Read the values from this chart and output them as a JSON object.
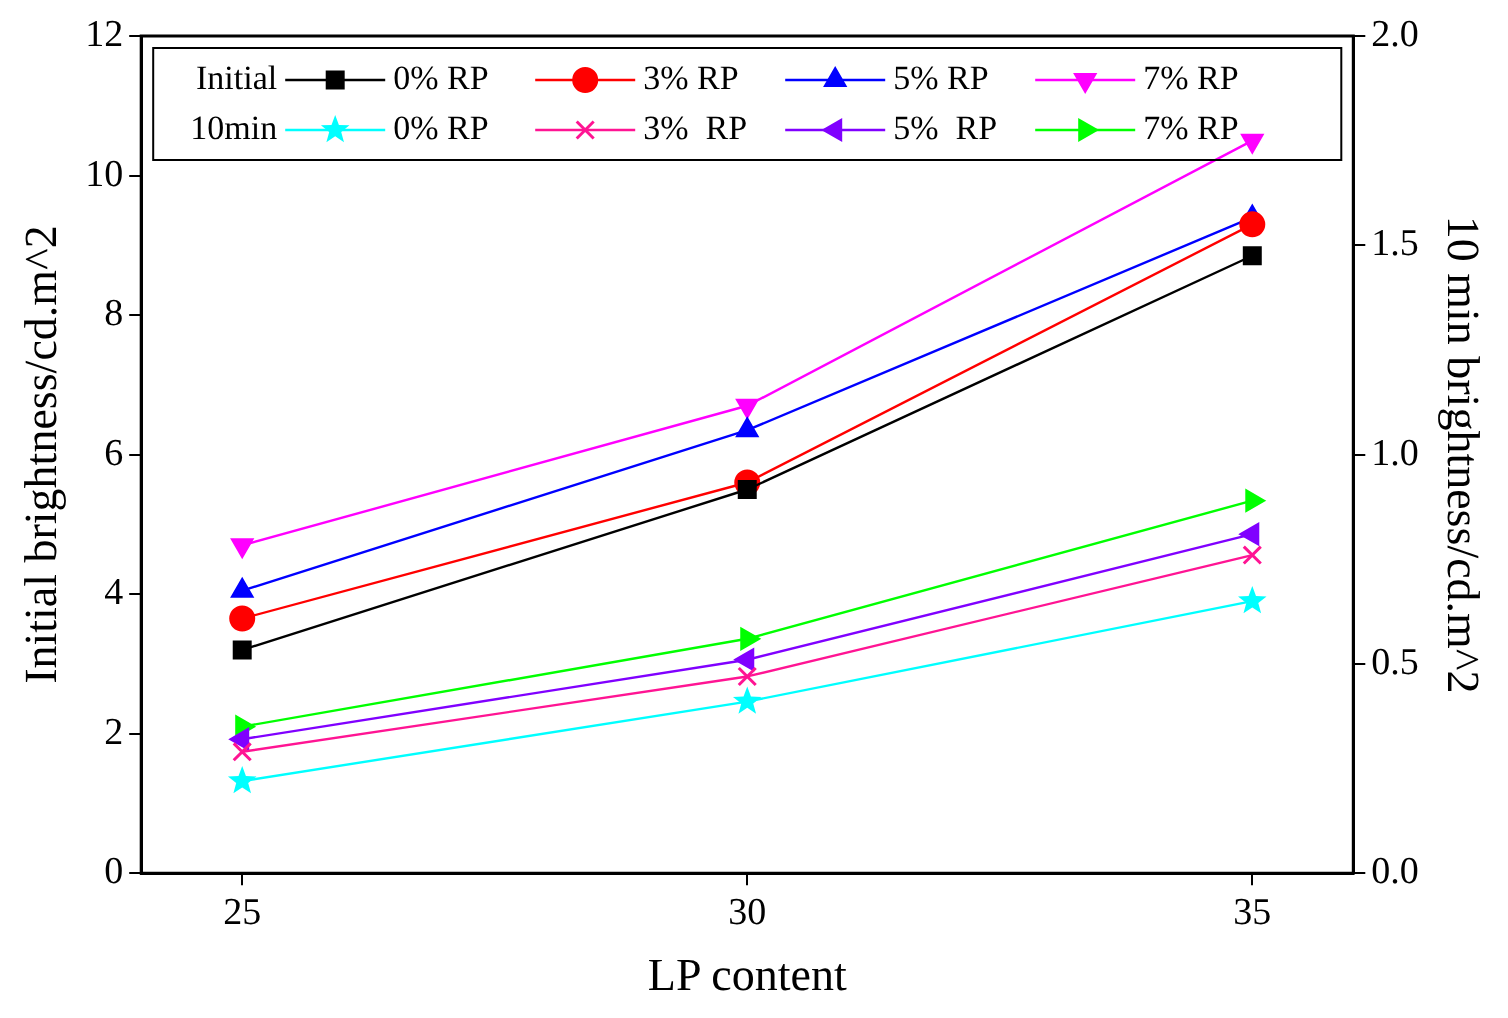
{
  "chart_data": {
    "type": "line",
    "xlabel": "LP content",
    "ylabel": "Initial brightness/cd.m^2",
    "y2label": "10 min brightness/cd.m^2",
    "x": [
      25,
      30,
      35
    ],
    "xlim": [
      24,
      36
    ],
    "xticks": [
      25,
      30,
      35
    ],
    "ylim": [
      0,
      12
    ],
    "yticks": [
      0,
      2,
      4,
      6,
      8,
      10,
      12
    ],
    "y2lim": [
      0,
      2
    ],
    "y2ticks": [
      {
        "value": 0,
        "label": "0.0"
      },
      {
        "value": 0.5,
        "label": "0.5"
      },
      {
        "value": 1,
        "label": "1.0"
      },
      {
        "value": 1.5,
        "label": "1.5"
      },
      {
        "value": 2,
        "label": "2.0"
      }
    ],
    "grid": false,
    "legend": "top",
    "line_style": "solid",
    "annotations": [
      "Initial",
      "10min"
    ],
    "series": [
      {
        "name": "0% RP",
        "color": "#000000",
        "marker": "square",
        "values": [
          3.2,
          5.5,
          8.85
        ]
      },
      {
        "name": "3% RP",
        "color": "#ff0000",
        "marker": "circle",
        "values": [
          3.65,
          5.6,
          9.3
        ]
      },
      {
        "name": "5% RP",
        "color": "#0000ff",
        "marker": "triangle",
        "values": [
          4.05,
          6.35,
          9.4
        ]
      },
      {
        "name": "7% RP",
        "color": "#ff00ff",
        "marker": "triangle-down",
        "values": [
          4.7,
          6.7,
          10.5
        ]
      },
      {
        "name": "0% RP",
        "color": "#00ffff",
        "marker": "star",
        "axis": "y2",
        "values": [
          0.22,
          0.41,
          0.65
        ]
      },
      {
        "name": "3%  RP",
        "color": "#ff1493",
        "marker": "cross",
        "axis": "y2",
        "values": [
          0.29,
          0.47,
          0.76
        ]
      },
      {
        "name": "5%  RP",
        "color": "#8000ff",
        "marker": "triangle-left",
        "axis": "y2",
        "values": [
          0.32,
          0.51,
          0.81
        ]
      },
      {
        "name": "7% RP",
        "color": "#00ff00",
        "marker": "triangle-right",
        "axis": "y2",
        "values": [
          0.35,
          0.56,
          0.89
        ]
      }
    ]
  }
}
